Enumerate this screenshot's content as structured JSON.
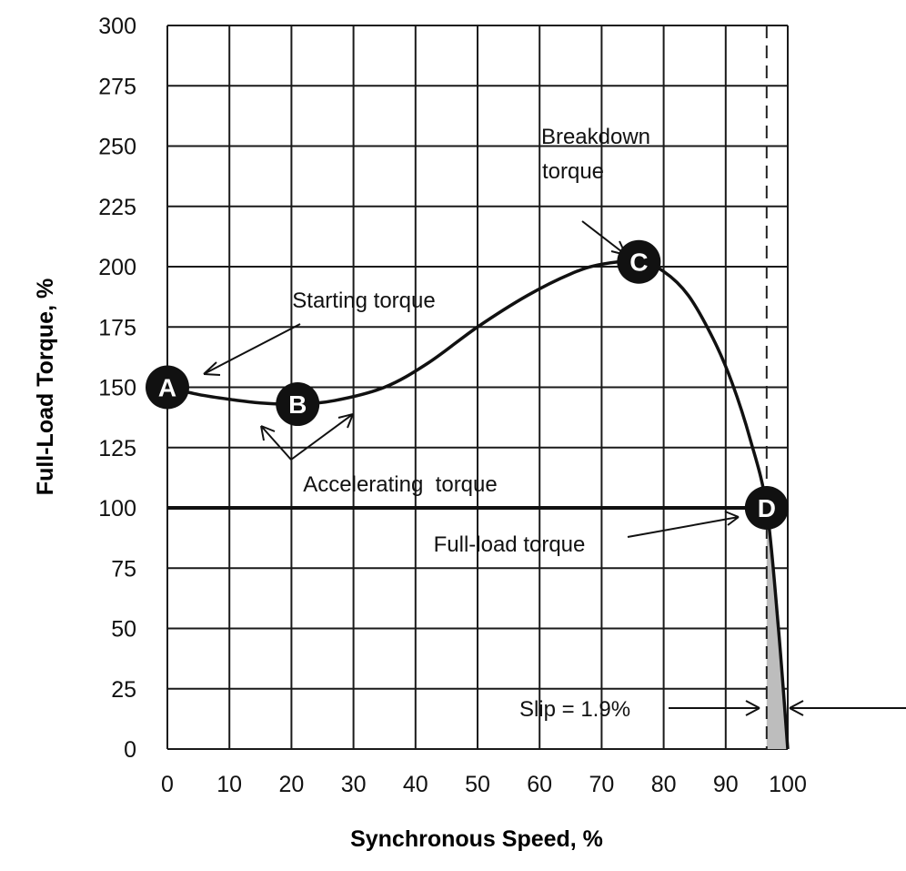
{
  "chart_data": {
    "type": "line",
    "title": "",
    "xlabel": "Synchronous Speed, %",
    "ylabel": "Full-Load Torque, %",
    "xlim": [
      0,
      100
    ],
    "ylim": [
      0,
      300
    ],
    "grid": true,
    "x_ticks": [
      "0",
      "10",
      "20",
      "30",
      "40",
      "50",
      "60",
      "70",
      "80",
      "90",
      "100"
    ],
    "y_ticks": [
      "0",
      "25",
      "50",
      "75",
      "100",
      "125",
      "150",
      "175",
      "200",
      "225",
      "250",
      "275",
      "300"
    ],
    "series": [
      {
        "x": [
          0,
          5,
          10,
          15,
          21,
          27,
          35,
          42,
          50,
          58,
          65,
          70,
          76,
          80,
          84,
          88,
          91,
          94,
          96.6,
          98.5,
          100
        ],
        "y": [
          150,
          147,
          145,
          143.5,
          143,
          144.5,
          150,
          160,
          175,
          188,
          197,
          201,
          202,
          198,
          188,
          170,
          152,
          128,
          100,
          50,
          0
        ],
        "color": "#111111"
      }
    ],
    "full_load_line": {
      "y": 100,
      "x": [
        0,
        96.6
      ]
    },
    "full_load_speed_marker_x": 96.6,
    "points": [
      {
        "label": "A",
        "x": 0,
        "y": 150
      },
      {
        "label": "B",
        "x": 21,
        "y": 143
      },
      {
        "label": "C",
        "x": 76,
        "y": 202
      },
      {
        "label": "D",
        "x": 96.6,
        "y": 100
      }
    ],
    "annotations": {
      "starting": "Starting torque",
      "breakdown_1": "Breakdown",
      "breakdown_2": "torque",
      "accelerating": "Accelerating  torque",
      "full_load": "Full-load torque",
      "slip": "Slip = 1.9%"
    },
    "slip_fill_color": "#bdbdbd"
  }
}
